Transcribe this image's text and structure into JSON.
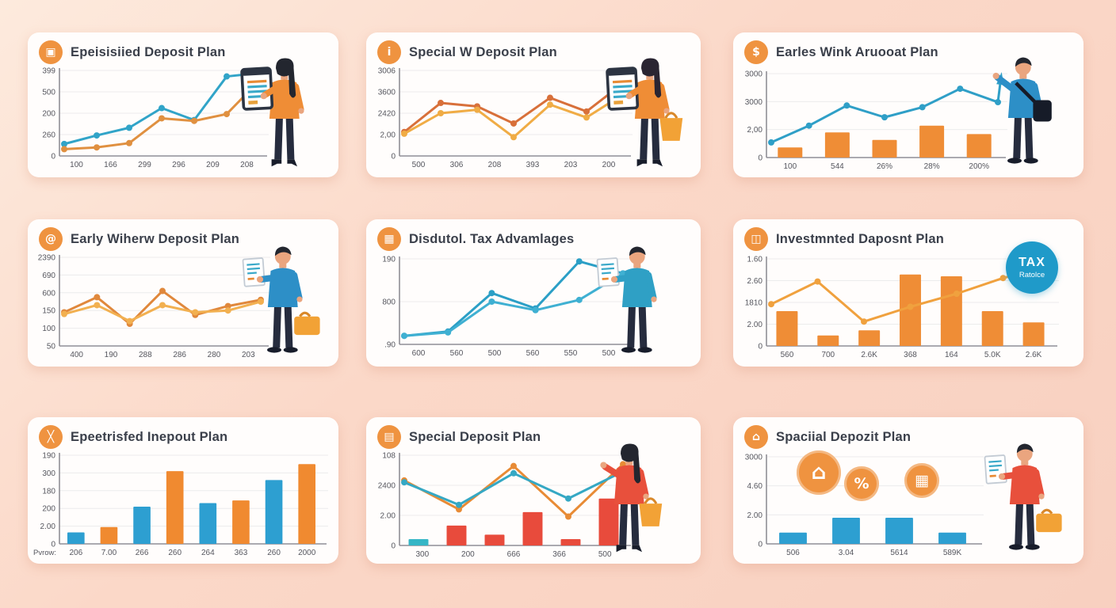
{
  "palette": {
    "background_top": "#fdeadd",
    "background_bottom": "#f8d0c0",
    "card": "#ffffff",
    "title_text": "#3a3f4a",
    "axis_text": "#55565e",
    "icon_orange": "#ef9340",
    "teal": "#31a4c8",
    "orange": "#e88b35",
    "light_orange": "#f2b050",
    "blue_bar": "#2d9fd1",
    "red_bar": "#e84b3c",
    "badge_blue": "#1f9ac9"
  },
  "cards": [
    {
      "title": "Epeisisiied Deposit Plan",
      "icon": {
        "name": "deposit-box-icon",
        "glyph": "▣"
      },
      "illustration": {
        "figure": "woman",
        "shirt": "#ef8d36",
        "hair": "#23262f",
        "items": [
          "tablet"
        ]
      }
    },
    {
      "title": "Special W Deposit Plan",
      "icon": {
        "name": "info-icon",
        "glyph": "i"
      },
      "illustration": {
        "figure": "woman",
        "shirt": "#ef8d36",
        "hair": "#2a2532",
        "items": [
          "tablet",
          "bag"
        ]
      }
    },
    {
      "title": "Earles Wink Aruooat Plan",
      "icon": {
        "name": "dollar-icon",
        "glyph": "$"
      },
      "illustration": {
        "figure": "man",
        "shirt": "#2d8fc7",
        "hair": "#23262f",
        "items": [
          "pointing",
          "shoulder-bag"
        ]
      }
    },
    {
      "title": "Early Wiherw Deposit Plan",
      "icon": {
        "name": "at-icon",
        "glyph": "@"
      },
      "illustration": {
        "figure": "man",
        "shirt": "#2d8fc7",
        "hair": "#23262f",
        "items": [
          "doc",
          "briefcase"
        ]
      }
    },
    {
      "title": "Disdutol. Tax Advamlages",
      "icon": {
        "name": "calendar-icon",
        "glyph": "▦"
      },
      "illustration": {
        "figure": "man",
        "shirt": "#2fa0c5",
        "hair": "#23262f",
        "items": [
          "doc"
        ]
      }
    },
    {
      "title": "Investmnted Daposnt Plan",
      "icon": {
        "name": "vault-icon",
        "glyph": "◫"
      },
      "badge": {
        "line1": "TAX",
        "line2": "Ratolce",
        "bg": "#1f9ac9"
      }
    },
    {
      "title": "Epeetrisfed Inepout Plan",
      "icon": {
        "name": "crossed-tools-icon",
        "glyph": "╳"
      }
    },
    {
      "title": "Special Deposit Plan",
      "icon": {
        "name": "gift-box-icon",
        "glyph": "▤"
      },
      "illustration": {
        "figure": "woman",
        "shirt": "#e8503c",
        "hair": "#23262f",
        "items": [
          "bag"
        ]
      }
    },
    {
      "title": "Spaciial Depozit Plan",
      "icon": {
        "name": "bank-icon",
        "glyph": "⌂"
      },
      "chart_icons": [
        {
          "name": "bank-building-icon",
          "glyph": "⌂"
        },
        {
          "name": "money-icon",
          "glyph": "%"
        },
        {
          "name": "home-savings-icon",
          "glyph": "▦"
        }
      ],
      "illustration": {
        "figure": "man",
        "shirt": "#e8503c",
        "hair": "#23262f",
        "items": [
          "doc",
          "briefcase"
        ]
      }
    }
  ],
  "chart_data": [
    {
      "card": 1,
      "title": "Epeisisiied Deposit Plan",
      "type": "line",
      "grid": true,
      "ylim": [
        0,
        100
      ],
      "y_tick_labels": [
        "399",
        "500",
        "200",
        "260",
        "0"
      ],
      "x_tick_labels": [
        "100",
        "166",
        "299",
        "296",
        "209",
        "208"
      ],
      "series": [
        {
          "name": "teal-line",
          "color": "#31a4c8",
          "values": [
            14,
            24,
            33,
            56,
            42,
            93,
            97
          ]
        },
        {
          "name": "orange-line",
          "color": "#e09040",
          "values": [
            8,
            10,
            15,
            44,
            41,
            49,
            88
          ]
        }
      ]
    },
    {
      "card": 2,
      "title": "Special W Deposit Plan",
      "type": "line",
      "grid": true,
      "ylim": [
        0,
        100
      ],
      "y_tick_labels": [
        "3006",
        "3600",
        "2420",
        "2,00",
        "0"
      ],
      "x_tick_labels": [
        "500",
        "306",
        "208",
        "393",
        "203",
        "200"
      ],
      "series": [
        {
          "name": "dark-orange-line",
          "color": "#d8703a",
          "values": [
            28,
            62,
            58,
            38,
            68,
            52,
            85
          ]
        },
        {
          "name": "light-orange-line",
          "color": "#f0ac45",
          "values": [
            26,
            50,
            54,
            22,
            60,
            45,
            72
          ]
        }
      ]
    },
    {
      "card": 3,
      "title": "Earles Wink Aruooat Plan",
      "type": "combo",
      "grid": true,
      "ylim": [
        0,
        100
      ],
      "y_tick_labels": [
        "3000",
        "3000",
        "2,00",
        "0"
      ],
      "x_tick_labels": [
        "100",
        "544",
        "26%",
        "28%",
        "200%"
      ],
      "bars": {
        "color": "#ef8d36",
        "values": [
          12,
          30,
          21,
          38,
          28
        ]
      },
      "series": [
        {
          "name": "teal-line",
          "color": "#2f9fc7",
          "values": [
            18,
            38,
            62,
            48,
            60,
            82,
            66
          ],
          "arrow": true
        }
      ]
    },
    {
      "card": 4,
      "title": "Early Wiherw Deposit Plan",
      "type": "line",
      "grid": true,
      "ylim": [
        0,
        100
      ],
      "y_tick_labels": [
        "2390",
        "690",
        "600",
        "150",
        "100",
        "50"
      ],
      "x_tick_labels": [
        "400",
        "190",
        "288",
        "286",
        "280",
        "203"
      ],
      "series": [
        {
          "name": "dark-orange-line",
          "color": "#e0883c",
          "values": [
            38,
            55,
            25,
            62,
            35,
            45,
            52
          ]
        },
        {
          "name": "light-orange-line",
          "color": "#f2b050",
          "values": [
            36,
            46,
            28,
            46,
            38,
            40,
            50
          ]
        }
      ]
    },
    {
      "card": 5,
      "title": "Disdutol. Tax Advamlages",
      "type": "line",
      "grid": true,
      "ylim": [
        0,
        100
      ],
      "y_tick_labels": [
        "190",
        "800",
        ".90"
      ],
      "x_tick_labels": [
        "600",
        "560",
        "500",
        "560",
        "550",
        "500"
      ],
      "series": [
        {
          "name": "teal-line-1",
          "color": "#2b9fc6",
          "values": [
            10,
            15,
            60,
            42,
            97,
            83
          ]
        },
        {
          "name": "teal-line-2",
          "color": "#3fb0d2",
          "values": [
            10,
            14,
            50,
            40,
            52,
            83
          ]
        }
      ]
    },
    {
      "card": 6,
      "title": "Investmnted Daposnt Plan",
      "type": "combo",
      "grid": true,
      "ylim": [
        0,
        100
      ],
      "y_tick_labels": [
        "1.60",
        "2.60",
        "1810",
        "2.00",
        "0"
      ],
      "x_tick_labels": [
        "560",
        "700",
        "2.6K",
        "368",
        "164",
        "5.0K",
        "2.6K"
      ],
      "bars": {
        "color": "#ef8d36",
        "values": [
          40,
          12,
          18,
          82,
          80,
          40,
          27
        ]
      },
      "series": [
        {
          "name": "orange-line",
          "color": "#f0a13e",
          "values": [
            48,
            74,
            28,
            45,
            60,
            78,
            92
          ],
          "arrow": true
        }
      ]
    },
    {
      "card": 7,
      "title": "Epeetrisfed Inepout Plan",
      "type": "bar",
      "grid": true,
      "ylim": [
        0,
        100
      ],
      "y_tick_labels": [
        "190",
        "300",
        "180",
        "200",
        "2.00",
        "0"
      ],
      "x_prefix": "Pvrow:",
      "x_tick_labels": [
        "206",
        "7.00",
        "266",
        "260",
        "264",
        "363",
        "260",
        "2000"
      ],
      "bars": {
        "colors": [
          "#2d9fd1",
          "#f08a30",
          "#2d9fd1",
          "#f08a30",
          "#2d9fd1",
          "#f08a30",
          "#2d9fd1",
          "#f08a30"
        ],
        "values": [
          13,
          19,
          42,
          82,
          46,
          49,
          72,
          90
        ]
      }
    },
    {
      "card": 8,
      "title": "Special Deposit Plan",
      "type": "combo",
      "grid": true,
      "ylim": [
        0,
        100
      ],
      "y_tick_labels": [
        "108",
        "2400",
        "2.00",
        "0"
      ],
      "x_tick_labels": [
        "300",
        "200",
        "666",
        "366",
        "500"
      ],
      "bars": {
        "colors": [
          "#36b6c6",
          "#e84b3c",
          "#e84b3c",
          "#e84b3c",
          "#e84b3c",
          "#e84b3c"
        ],
        "values": [
          7,
          22,
          12,
          37,
          7,
          52
        ]
      },
      "series": [
        {
          "name": "orange-line",
          "color": "#e88b35",
          "values": [
            72,
            40,
            88,
            32,
            90
          ]
        },
        {
          "name": "teal-line",
          "color": "#35a8c4",
          "values": [
            70,
            45,
            80,
            52,
            82
          ]
        }
      ]
    },
    {
      "card": 9,
      "title": "Spaciial Depozit Plan",
      "type": "bar",
      "grid": true,
      "ylim": [
        0,
        100
      ],
      "y_tick_labels": [
        "3000",
        "4.60",
        "2.00",
        "0"
      ],
      "x_tick_labels": [
        "506",
        "3.04",
        "5614",
        "589K"
      ],
      "bars": {
        "color": "#2d9fd1",
        "values": [
          13,
          30,
          30,
          13
        ]
      }
    }
  ]
}
